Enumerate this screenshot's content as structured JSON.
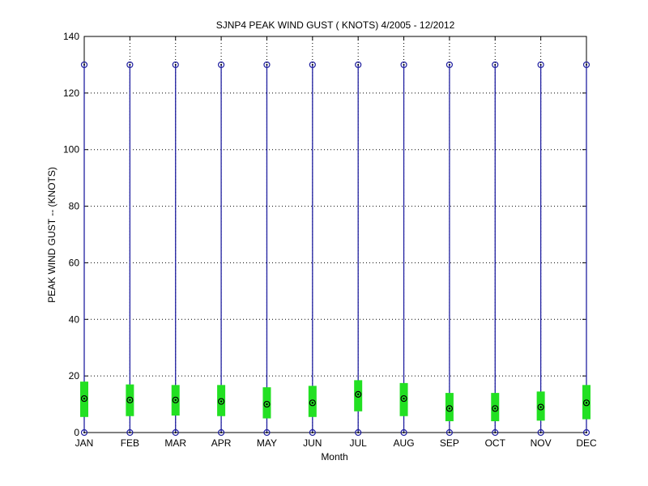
{
  "chart_data": {
    "type": "box",
    "title": "SJNP4  PEAK WIND GUST ( KNOTS) 4/2005 - 12/2012",
    "xlabel": "Month",
    "ylabel": "PEAK WIND GUST -- (KNOTS)",
    "ylim": [
      0,
      140
    ],
    "yticks": [
      0,
      20,
      40,
      60,
      80,
      100,
      120,
      140
    ],
    "grid": true,
    "categories": [
      "JAN",
      "FEB",
      "MAR",
      "APR",
      "MAY",
      "JUN",
      "JUL",
      "AUG",
      "SEP",
      "OCT",
      "NOV",
      "DEC"
    ],
    "series": [
      {
        "min": [
          0,
          0,
          0,
          0,
          0,
          0,
          0,
          0,
          0,
          0,
          0,
          0
        ],
        "q1": [
          5.5,
          5.8,
          6.0,
          5.8,
          5.0,
          5.5,
          7.5,
          5.8,
          4.0,
          4.0,
          4.2,
          4.7
        ],
        "median": [
          12,
          11.5,
          11.5,
          11,
          10,
          10.5,
          13.5,
          12,
          8.5,
          8.5,
          9,
          10.5
        ],
        "q3": [
          18,
          17,
          16.8,
          16.8,
          16,
          16.5,
          18.5,
          17.5,
          14,
          14,
          14.5,
          16.8
        ],
        "max": [
          130,
          130,
          130,
          130,
          130,
          130,
          130,
          130,
          130,
          130,
          130,
          130
        ]
      }
    ],
    "colors": {
      "whisker": "#1f1fa0",
      "box": "#22e022",
      "marker": "#000000",
      "grid": "#000000"
    }
  }
}
